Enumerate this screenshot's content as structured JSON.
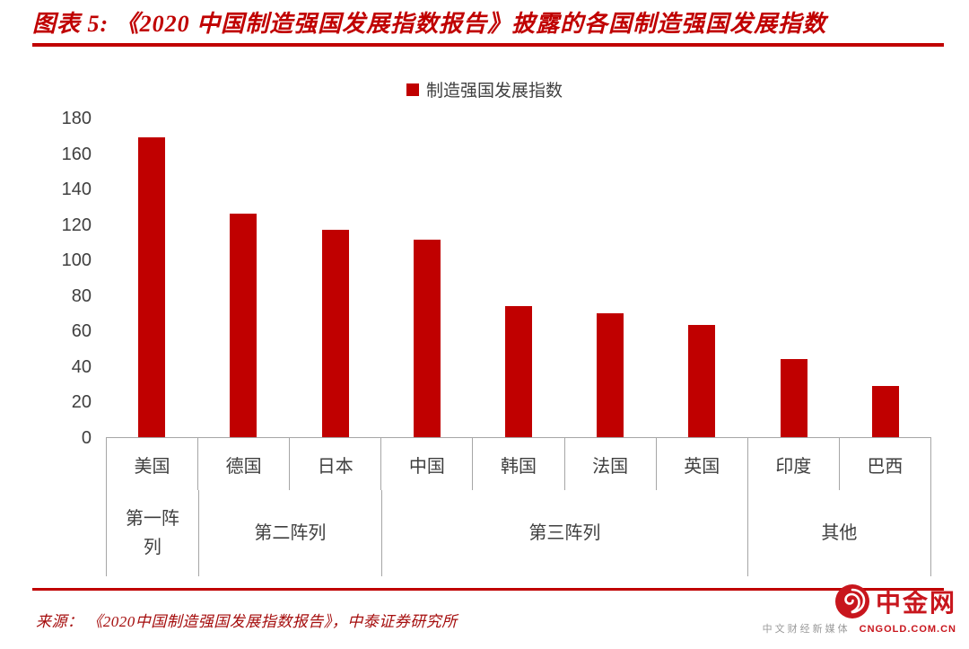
{
  "header": {
    "title": "图表 5: 《2020 中国制造强国发展指数报告》披露的各国制造强国发展指数"
  },
  "legend": {
    "label": "制造强国发展指数",
    "marker_color": "#c00000"
  },
  "chart_data": {
    "type": "bar",
    "title": "制造强国发展指数",
    "categories": [
      "美国",
      "德国",
      "日本",
      "中国",
      "韩国",
      "法国",
      "英国",
      "印度",
      "巴西"
    ],
    "values": [
      169,
      126,
      117,
      111,
      74,
      70,
      63,
      44,
      29
    ],
    "groups": [
      {
        "label": "第一阵列",
        "span": 1
      },
      {
        "label": "第二阵列",
        "span": 2
      },
      {
        "label": "第三阵列",
        "span": 4
      },
      {
        "label": "其他",
        "span": 2
      }
    ],
    "xlabel": "",
    "ylabel": "",
    "ylim": [
      0,
      180
    ],
    "ytick_step": 20,
    "bar_color": "#c00000",
    "grid": false,
    "legend_position": "top-center"
  },
  "footer": {
    "source": "来源： 《2020中国制造强国发展指数报告》，中泰证券研究所"
  },
  "logo": {
    "name": "中金网",
    "domain": "CNGOLD.COM.CN",
    "tagline": "中文财经新媒体"
  }
}
